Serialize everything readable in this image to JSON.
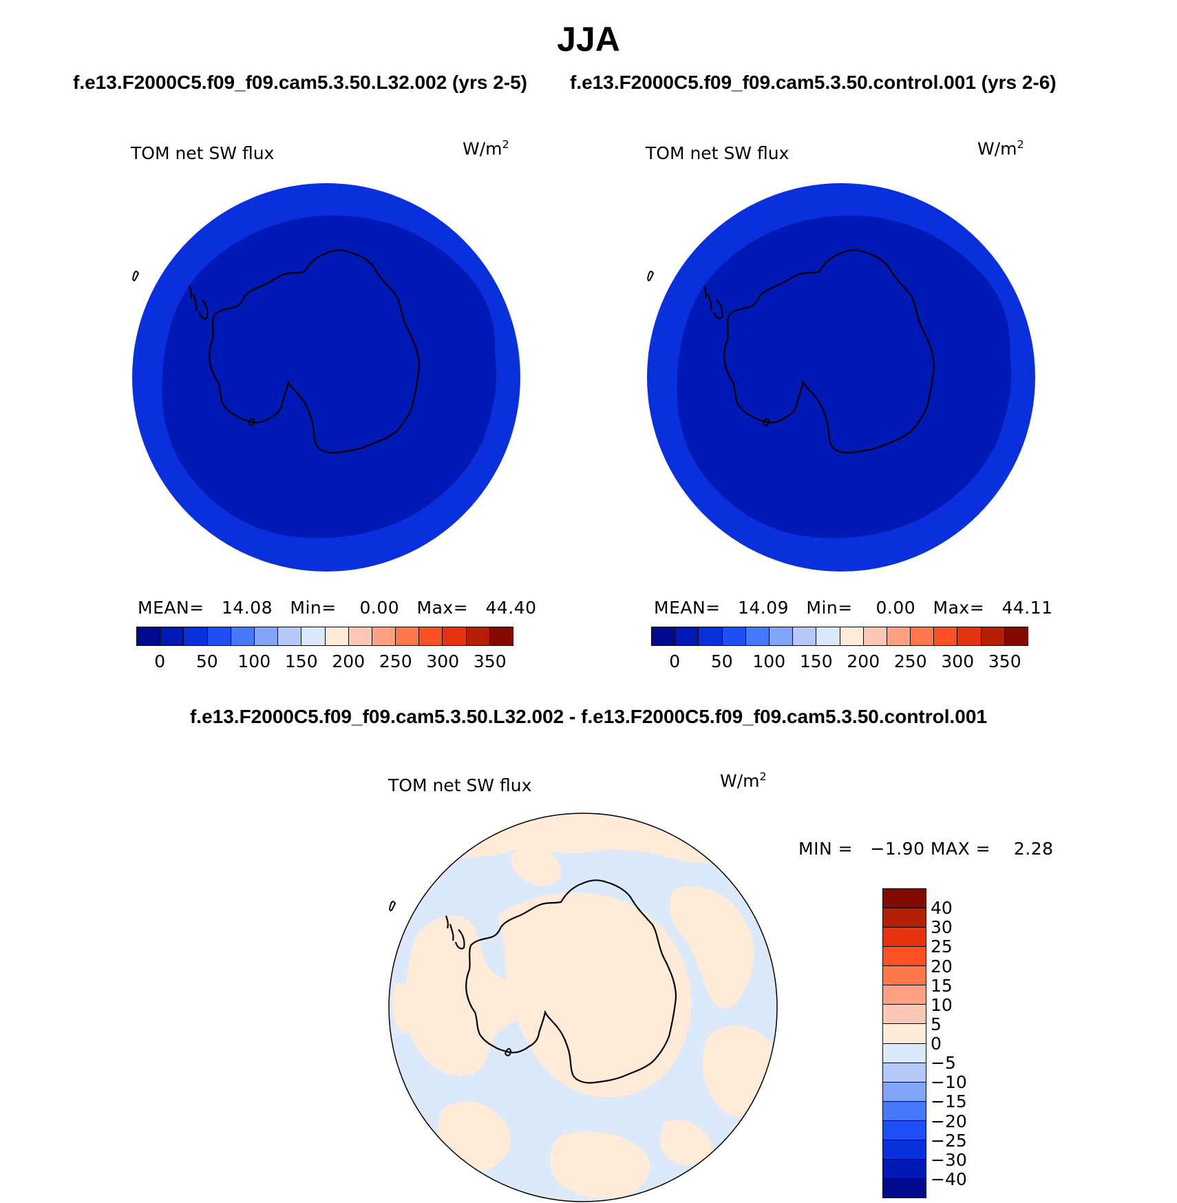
{
  "main_title": "JJA",
  "panels": [
    {
      "case_title": "f.e13.F2000C5.f09_f09.cam5.3.50.L32.002 (yrs 2-5)",
      "variable": "TOM net SW flux",
      "units": "W/m",
      "units_sup": "2",
      "mean_label": "MEAN=",
      "mean_value": "14.08",
      "min_label": "Min=",
      "min_value": "0.00",
      "max_label": "Max=",
      "max_value": "44.40"
    },
    {
      "case_title": "f.e13.F2000C5.f09_f09.cam5.3.50.control.001 (yrs 2-6)",
      "variable": "TOM net SW flux",
      "units": "W/m",
      "units_sup": "2",
      "mean_label": "MEAN=",
      "mean_value": "14.09",
      "min_label": "Min=",
      "min_value": "0.00",
      "max_label": "Max=",
      "max_value": "44.11"
    }
  ],
  "difference": {
    "title": "f.e13.F2000C5.f09_f09.cam5.3.50.L32.002 - f.e13.F2000C5.f09_f09.cam5.3.50.control.001",
    "variable": "TOM net SW flux",
    "units": "W/m",
    "units_sup": "2",
    "minmax_text": "MIN =   −1.90 MAX =    2.28"
  },
  "colorbar_abs": {
    "colors": [
      "#000a8c",
      "#0019b4",
      "#0a2fdc",
      "#1e50f5",
      "#4678fa",
      "#82a5fa",
      "#b4c8fa",
      "#dce9fa",
      "#ffebd7",
      "#ffc8b4",
      "#ffa082",
      "#ff784b",
      "#ff5023",
      "#e6320f",
      "#b41e05",
      "#820a00"
    ],
    "labels": [
      "0",
      "50",
      "100",
      "150",
      "200",
      "250",
      "300",
      "350"
    ]
  },
  "colorbar_diff": {
    "colors": [
      "#820a00",
      "#b41e05",
      "#e6320f",
      "#ff5023",
      "#ff784b",
      "#ffa082",
      "#ffc8b4",
      "#ffebd7",
      "#dce9fa",
      "#b4c8fa",
      "#82a5fa",
      "#4678fa",
      "#1e50f5",
      "#0a2fdc",
      "#0019b4",
      "#000a8c"
    ],
    "labels": [
      "40",
      "30",
      "25",
      "20",
      "15",
      "10",
      "5",
      "0",
      "−5",
      "−10",
      "−15",
      "−20",
      "−25",
      "−30",
      "−40"
    ]
  },
  "map_colors": {
    "abs_outer": "#0a2fdc",
    "abs_inner": "#0019b4",
    "diff_pos": "#ffebd7",
    "diff_neg": "#dce9fa"
  }
}
